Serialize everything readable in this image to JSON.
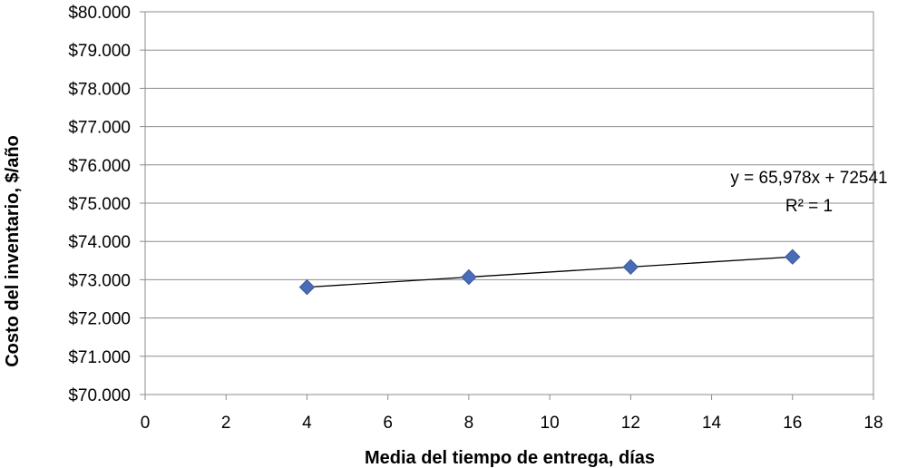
{
  "chart_data": {
    "type": "scatter",
    "title": "",
    "xlabel": "Media del tiempo de entrega, días",
    "ylabel": "Costo del inventario, $/año",
    "xlim": [
      0,
      18
    ],
    "ylim": [
      70000,
      80000
    ],
    "x_ticks": [
      0,
      2,
      4,
      6,
      8,
      10,
      12,
      14,
      16,
      18
    ],
    "x_tick_labels": [
      "0",
      "2",
      "4",
      "6",
      "8",
      "10",
      "12",
      "14",
      "16",
      "18"
    ],
    "y_ticks": [
      70000,
      71000,
      72000,
      73000,
      74000,
      75000,
      76000,
      77000,
      78000,
      79000,
      80000
    ],
    "y_tick_labels": [
      "$70.000",
      "$71.000",
      "$72.000",
      "$73.000",
      "$74.000",
      "$75.000",
      "$76.000",
      "$77.000",
      "$78.000",
      "$79.000",
      "$80.000"
    ],
    "grid": "horizontal",
    "legend": "none",
    "series": [
      {
        "x": [
          4,
          8,
          12,
          16
        ],
        "y": [
          72805,
          73069,
          73333,
          73597
        ],
        "marker": "diamond",
        "color": "#4a6bb5"
      }
    ],
    "trendline": {
      "type": "linear",
      "slope": 65.978,
      "intercept": 72541,
      "x_range": [
        4,
        16
      ],
      "color": "#000000"
    },
    "annotations": {
      "equation": "y = 65,978x + 72541",
      "r_squared": "R² = 1"
    }
  }
}
